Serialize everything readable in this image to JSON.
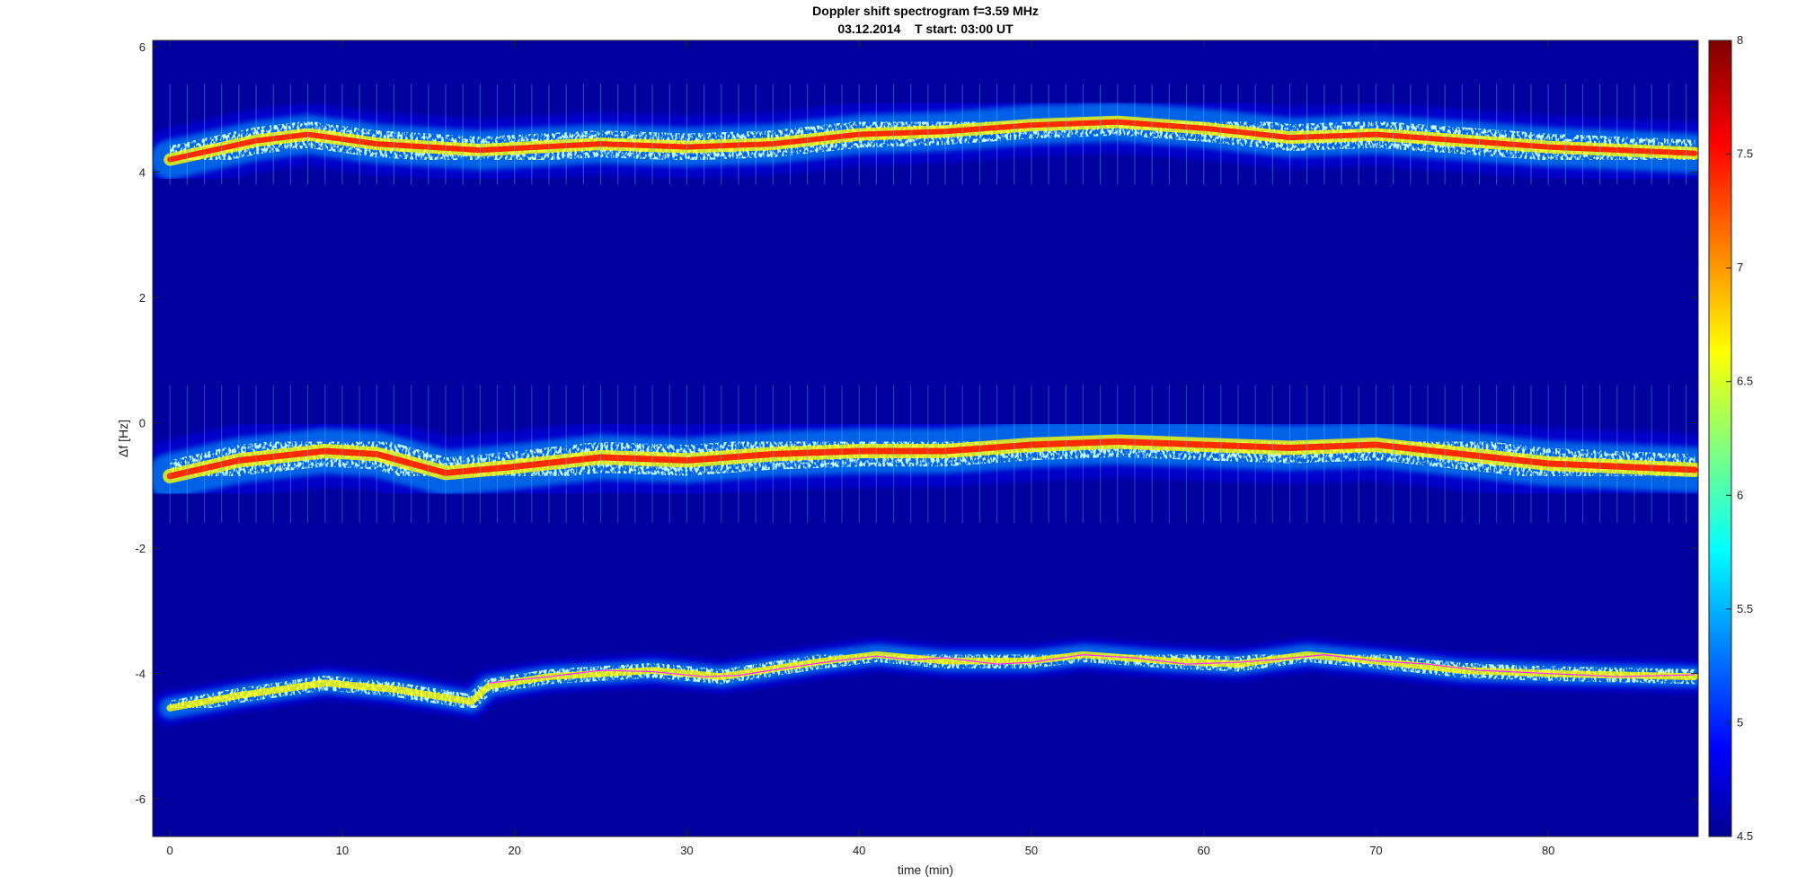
{
  "chart_data": {
    "type": "heatmap",
    "title": "Doppler shift spectrogram f=3.59 MHz",
    "subtitle": "03.12.2014    T start: 03:00 UT",
    "xlabel": "time (min)",
    "ylabel": "Δf [Hz]",
    "xlim": [
      -1,
      88.7
    ],
    "ylim": [
      -6.6,
      6.1
    ],
    "xticks": [
      0,
      10,
      20,
      30,
      40,
      50,
      60,
      70,
      80
    ],
    "yticks": [
      -6,
      -4,
      -2,
      0,
      2,
      4,
      6
    ],
    "colorbar": {
      "min": 4.5,
      "max": 8,
      "ticks": [
        4.5,
        5,
        5.5,
        6,
        6.5,
        7,
        7.5,
        8
      ],
      "colormap": "jet"
    },
    "series": [
      {
        "x": [
          0,
          5,
          8,
          12,
          18,
          25,
          30,
          35,
          40,
          45,
          50,
          55,
          60,
          65,
          70,
          75,
          80,
          88.5
        ],
        "y": [
          4.2,
          4.5,
          4.6,
          4.45,
          4.35,
          4.45,
          4.4,
          4.45,
          4.6,
          4.65,
          4.75,
          4.8,
          4.7,
          4.55,
          4.6,
          4.5,
          4.4,
          4.3
        ]
      },
      {
        "x": [
          0,
          4,
          9,
          12,
          16,
          20,
          25,
          30,
          35,
          40,
          45,
          50,
          55,
          60,
          65,
          70,
          75,
          80,
          88.5
        ],
        "y": [
          -0.85,
          -0.6,
          -0.45,
          -0.5,
          -0.8,
          -0.7,
          -0.55,
          -0.6,
          -0.5,
          -0.45,
          -0.45,
          -0.35,
          -0.3,
          -0.35,
          -0.4,
          -0.35,
          -0.5,
          -0.65,
          -0.75
        ]
      },
      {
        "x": [
          0,
          4,
          9,
          13,
          17.5,
          18.5,
          22,
          28,
          32,
          38,
          41,
          45,
          50,
          53,
          58,
          62,
          66,
          70,
          75,
          80,
          88.5
        ],
        "y": [
          -4.55,
          -4.35,
          -4.15,
          -4.25,
          -4.45,
          -4.2,
          -4.05,
          -3.95,
          -4.05,
          -3.8,
          -3.7,
          -3.8,
          -3.8,
          -3.7,
          -3.8,
          -3.85,
          -3.7,
          -3.8,
          -3.95,
          -4.0,
          -4.05
        ]
      }
    ],
    "trend_line": {
      "color": "#ff33ff",
      "x": [
        18.5,
        22,
        25,
        28,
        31,
        33,
        36,
        38,
        41,
        43,
        45,
        48,
        50,
        53,
        56,
        59,
        62,
        64,
        67,
        70,
        73,
        76,
        80,
        84,
        88.5
      ],
      "y": [
        -4.15,
        -4.05,
        -3.95,
        -3.97,
        -4.05,
        -4.03,
        -3.9,
        -3.82,
        -3.72,
        -3.78,
        -3.75,
        -3.85,
        -3.82,
        -3.7,
        -3.75,
        -3.85,
        -3.82,
        -3.78,
        -3.7,
        -3.8,
        -3.85,
        -3.95,
        -4.0,
        -4.05,
        -4.02
      ]
    }
  }
}
